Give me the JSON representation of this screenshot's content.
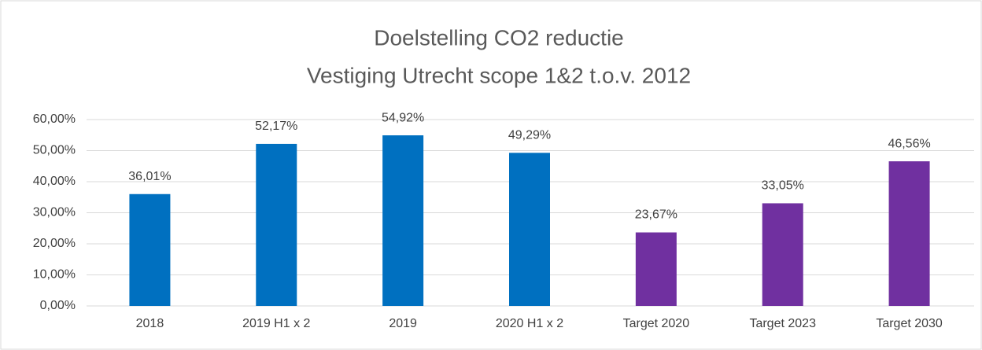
{
  "chart_data": {
    "type": "bar",
    "title": "Doelstelling CO2 reductie",
    "subtitle": "Vestiging Utrecht scope 1&2 t.o.v. 2012",
    "categories": [
      "2018",
      "2019 H1 x 2",
      "2019",
      "2020 H1 x 2",
      "Target 2020",
      "Target 2023",
      "Target 2030"
    ],
    "values": [
      36.01,
      52.17,
      54.92,
      49.29,
      23.67,
      33.05,
      46.56
    ],
    "value_labels": [
      "36,01%",
      "52,17%",
      "54,92%",
      "49,29%",
      "23,67%",
      "33,05%",
      "46,56%"
    ],
    "colors": [
      "#0070c0",
      "#0070c0",
      "#0070c0",
      "#0070c0",
      "#7030a0",
      "#7030a0",
      "#7030a0"
    ],
    "ylim": [
      0,
      60
    ],
    "yticks": [
      {
        "value": 0,
        "label": "0,00%"
      },
      {
        "value": 10,
        "label": "10,00%"
      },
      {
        "value": 20,
        "label": "20,00%"
      },
      {
        "value": 30,
        "label": "30,00%"
      },
      {
        "value": 40,
        "label": "40,00%"
      },
      {
        "value": 50,
        "label": "50,00%"
      },
      {
        "value": 60,
        "label": "60,00%"
      }
    ],
    "grid": true
  }
}
